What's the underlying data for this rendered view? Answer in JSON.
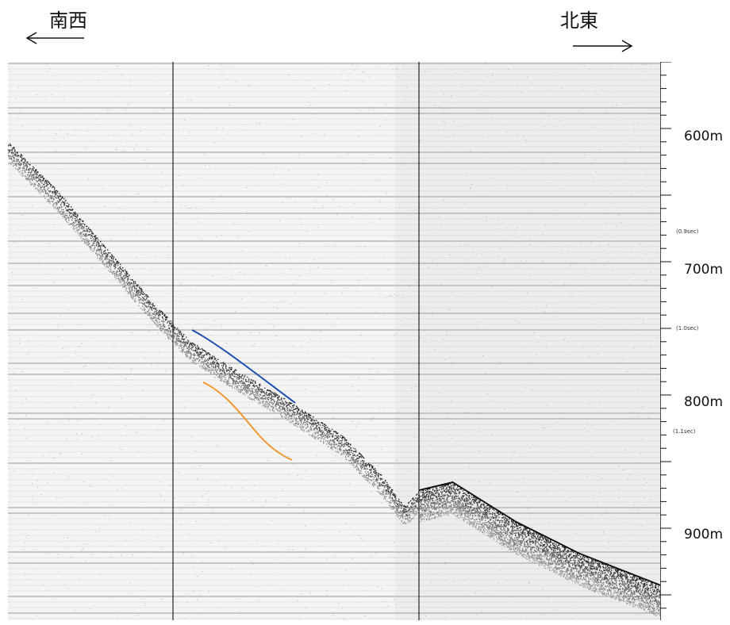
{
  "directions": {
    "southwest": "南西",
    "northeast": "北東"
  },
  "depth_labels": [
    "600m",
    "700m",
    "800m",
    "900m"
  ],
  "time_labels": [
    "(0.9sec)",
    "(1.0sec)",
    "(1.1sec)"
  ],
  "chart_data": {
    "type": "diagram",
    "trace_colors": {
      "upper_reflector": "#1f4fb0",
      "lower_reflector": "#f0962e"
    }
  }
}
